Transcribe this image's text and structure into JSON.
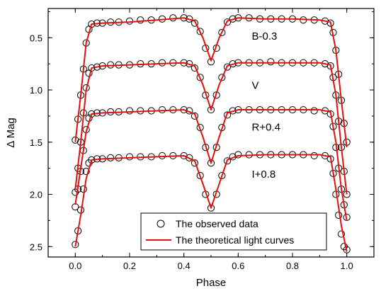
{
  "chart_data": {
    "type": "scatter",
    "title": "",
    "xlabel": "Phase",
    "ylabel": "Δ Mag",
    "xlim": [
      -0.1,
      1.1
    ],
    "ylim": [
      2.6,
      0.22
    ],
    "y_inverted": true,
    "xticks": [
      0.0,
      0.2,
      0.4,
      0.6,
      0.8,
      1.0
    ],
    "yticks": [
      0.5,
      1.0,
      1.5,
      2.0,
      2.5
    ],
    "xtick_labels": [
      "0.0",
      "0.2",
      "0.4",
      "0.6",
      "0.8",
      "1.0"
    ],
    "ytick_labels": [
      "0.5",
      "1.0",
      "1.5",
      "2.0",
      "2.5"
    ],
    "grid": false,
    "legend": {
      "position": "bottom-right",
      "entries": [
        {
          "label": "The observed data",
          "marker": "open-circle",
          "color": "#000000"
        },
        {
          "label": "The theoretical light curves",
          "marker": "line",
          "color": "#e01010"
        }
      ]
    },
    "model_phase": [
      0.0,
      0.02,
      0.04,
      0.06,
      0.1,
      0.2,
      0.3,
      0.4,
      0.44,
      0.47,
      0.5,
      0.53,
      0.56,
      0.6,
      0.7,
      0.8,
      0.9,
      0.94,
      0.96,
      0.98,
      1.0
    ],
    "series": [
      {
        "name": "B-0.3",
        "label_phase": 0.65,
        "label_mag": 0.52,
        "model_mag": [
          1.5,
          1.05,
          0.55,
          0.37,
          0.36,
          0.35,
          0.33,
          0.31,
          0.34,
          0.5,
          0.72,
          0.5,
          0.34,
          0.31,
          0.32,
          0.32,
          0.33,
          0.35,
          0.62,
          1.1,
          1.55
        ],
        "observed_phase": [
          0.0,
          0.01,
          0.02,
          0.03,
          0.04,
          0.05,
          0.06,
          0.08,
          0.1,
          0.13,
          0.16,
          0.2,
          0.24,
          0.28,
          0.32,
          0.36,
          0.4,
          0.42,
          0.44,
          0.46,
          0.48,
          0.5,
          0.52,
          0.54,
          0.56,
          0.58,
          0.6,
          0.64,
          0.68,
          0.72,
          0.76,
          0.8,
          0.84,
          0.88,
          0.92,
          0.94,
          0.95,
          0.96,
          0.97,
          0.98,
          0.99,
          1.0
        ],
        "observed_mag": [
          1.48,
          1.28,
          1.05,
          0.8,
          0.55,
          0.42,
          0.37,
          0.36,
          0.36,
          0.35,
          0.35,
          0.34,
          0.33,
          0.33,
          0.32,
          0.31,
          0.31,
          0.32,
          0.36,
          0.44,
          0.6,
          0.73,
          0.6,
          0.45,
          0.35,
          0.32,
          0.31,
          0.31,
          0.32,
          0.32,
          0.32,
          0.32,
          0.33,
          0.33,
          0.34,
          0.36,
          0.45,
          0.62,
          0.85,
          1.1,
          1.32,
          1.5
        ]
      },
      {
        "name": "V",
        "label_phase": 0.65,
        "label_mag": 0.99,
        "model_mag": [
          1.95,
          1.5,
          1.0,
          0.79,
          0.77,
          0.76,
          0.75,
          0.74,
          0.77,
          0.95,
          1.19,
          0.95,
          0.77,
          0.74,
          0.74,
          0.74,
          0.74,
          0.76,
          1.05,
          1.55,
          2.0
        ],
        "observed_phase": [
          0.0,
          0.01,
          0.02,
          0.03,
          0.04,
          0.05,
          0.06,
          0.08,
          0.1,
          0.13,
          0.16,
          0.2,
          0.24,
          0.28,
          0.32,
          0.36,
          0.4,
          0.42,
          0.44,
          0.46,
          0.48,
          0.5,
          0.52,
          0.54,
          0.56,
          0.58,
          0.6,
          0.64,
          0.68,
          0.72,
          0.76,
          0.8,
          0.84,
          0.88,
          0.92,
          0.94,
          0.95,
          0.96,
          0.97,
          0.98,
          0.99,
          1.0
        ],
        "observed_mag": [
          1.98,
          1.75,
          1.5,
          1.22,
          0.98,
          0.84,
          0.79,
          0.78,
          0.77,
          0.76,
          0.76,
          0.76,
          0.75,
          0.75,
          0.74,
          0.74,
          0.74,
          0.75,
          0.79,
          0.88,
          1.05,
          1.19,
          1.05,
          0.88,
          0.78,
          0.75,
          0.74,
          0.74,
          0.74,
          0.73,
          0.74,
          0.74,
          0.74,
          0.74,
          0.75,
          0.77,
          0.88,
          1.05,
          1.3,
          1.55,
          1.78,
          2.0
        ]
      },
      {
        "name": "R+0.4",
        "label_phase": 0.65,
        "label_mag": 1.39,
        "model_mag": [
          2.1,
          1.75,
          1.4,
          1.23,
          1.22,
          1.21,
          1.2,
          1.19,
          1.23,
          1.45,
          1.7,
          1.45,
          1.22,
          1.19,
          1.19,
          1.19,
          1.19,
          1.21,
          1.5,
          1.95,
          2.25
        ],
        "observed_phase": [
          0.0,
          0.01,
          0.02,
          0.03,
          0.04,
          0.05,
          0.06,
          0.08,
          0.1,
          0.13,
          0.16,
          0.2,
          0.24,
          0.28,
          0.32,
          0.36,
          0.4,
          0.42,
          0.44,
          0.46,
          0.48,
          0.5,
          0.52,
          0.54,
          0.56,
          0.58,
          0.6,
          0.64,
          0.68,
          0.72,
          0.76,
          0.8,
          0.84,
          0.88,
          0.92,
          0.94,
          0.95,
          0.96,
          0.97,
          0.98,
          0.99,
          1.0
        ],
        "observed_mag": [
          2.12,
          1.95,
          1.78,
          1.58,
          1.38,
          1.27,
          1.23,
          1.22,
          1.22,
          1.21,
          1.21,
          1.2,
          1.2,
          1.2,
          1.19,
          1.19,
          1.19,
          1.2,
          1.25,
          1.36,
          1.55,
          1.7,
          1.55,
          1.36,
          1.24,
          1.2,
          1.19,
          1.19,
          1.19,
          1.19,
          1.19,
          1.19,
          1.19,
          1.2,
          1.2,
          1.23,
          1.35,
          1.55,
          1.75,
          1.95,
          2.1,
          2.22
        ]
      },
      {
        "name": "I+0.8",
        "label_phase": 0.65,
        "label_mag": 1.84,
        "model_mag": [
          2.5,
          2.2,
          1.85,
          1.67,
          1.66,
          1.65,
          1.64,
          1.63,
          1.68,
          1.9,
          2.13,
          1.9,
          1.67,
          1.63,
          1.62,
          1.62,
          1.62,
          1.64,
          1.95,
          2.3,
          2.55
        ],
        "observed_phase": [
          0.0,
          0.01,
          0.02,
          0.03,
          0.04,
          0.05,
          0.06,
          0.08,
          0.1,
          0.13,
          0.16,
          0.2,
          0.24,
          0.28,
          0.32,
          0.36,
          0.4,
          0.42,
          0.44,
          0.46,
          0.48,
          0.5,
          0.52,
          0.54,
          0.56,
          0.58,
          0.6,
          0.64,
          0.68,
          0.72,
          0.76,
          0.8,
          0.84,
          0.88,
          0.92,
          0.94,
          0.95,
          0.96,
          0.97,
          0.98,
          0.99,
          1.0
        ],
        "observed_mag": [
          2.48,
          2.35,
          2.15,
          1.95,
          1.78,
          1.7,
          1.67,
          1.66,
          1.66,
          1.65,
          1.65,
          1.64,
          1.64,
          1.64,
          1.63,
          1.63,
          1.63,
          1.65,
          1.7,
          1.82,
          2.0,
          2.13,
          2.0,
          1.82,
          1.68,
          1.64,
          1.62,
          1.62,
          1.62,
          1.62,
          1.62,
          1.62,
          1.62,
          1.63,
          1.63,
          1.66,
          1.8,
          2.0,
          2.2,
          2.38,
          2.5,
          2.53
        ]
      }
    ]
  }
}
